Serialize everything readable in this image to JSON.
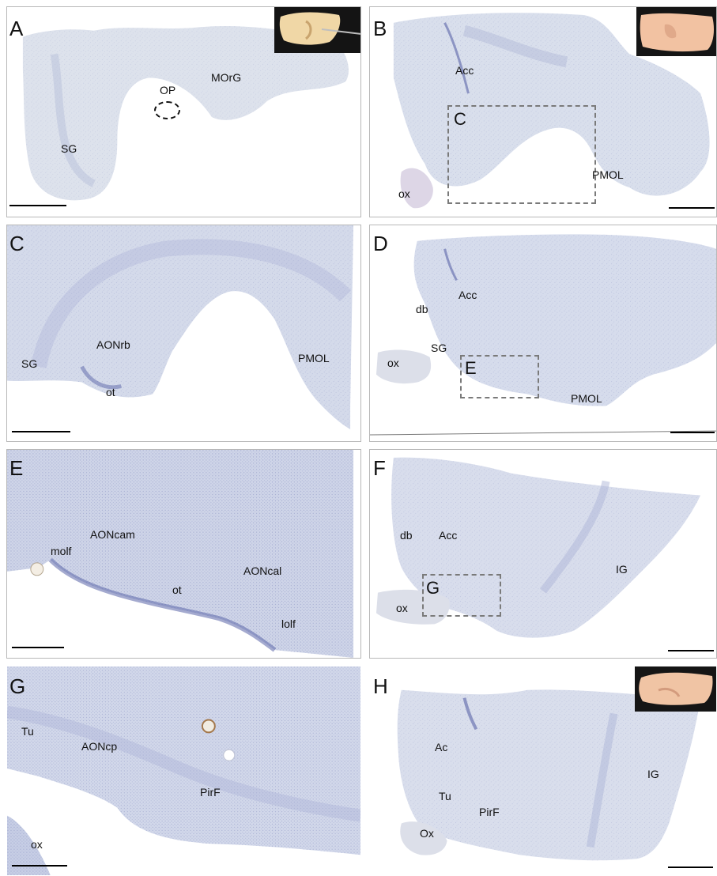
{
  "panels": {
    "A": {
      "letter": "A",
      "labels": {
        "op": "OP",
        "morg": "MOrG",
        "sg": "SG"
      }
    },
    "B": {
      "letter": "B",
      "labels": {
        "acc": "Acc",
        "pmol": "PMOL",
        "ox": "ox"
      },
      "box": "C"
    },
    "C": {
      "letter": "C",
      "labels": {
        "sg": "SG",
        "aonrb": "AONrb",
        "ot": "ot",
        "pmol": "PMOL"
      }
    },
    "D": {
      "letter": "D",
      "labels": {
        "db": "db",
        "acc": "Acc",
        "sg": "SG",
        "ox": "ox",
        "pmol": "PMOL"
      },
      "box": "E"
    },
    "E": {
      "letter": "E",
      "labels": {
        "aoncam": "AONcam",
        "molf": "molf",
        "ot": "ot",
        "aoncal": "AONcal",
        "lolf": "lolf"
      }
    },
    "F": {
      "letter": "F",
      "labels": {
        "db": "db",
        "acc": "Acc",
        "ig": "IG",
        "ox": "ox"
      },
      "box": "G"
    },
    "G": {
      "letter": "G",
      "labels": {
        "tu": "Tu",
        "aoncp": "AONcp",
        "pirf": "PirF",
        "ox": "ox"
      }
    },
    "H": {
      "letter": "H",
      "labels": {
        "ac": "Ac",
        "ig": "IG",
        "tu": "Tu",
        "pirf": "PirF",
        "ox": "Ox"
      }
    }
  },
  "colors": {
    "tissue_light": "#dfe3ee",
    "tissue_mid": "#c9cfe2",
    "tissue_dense": "#9ea6cf",
    "stain_dark": "#5a64a8",
    "photo_tissue": "#f1c9a0"
  }
}
